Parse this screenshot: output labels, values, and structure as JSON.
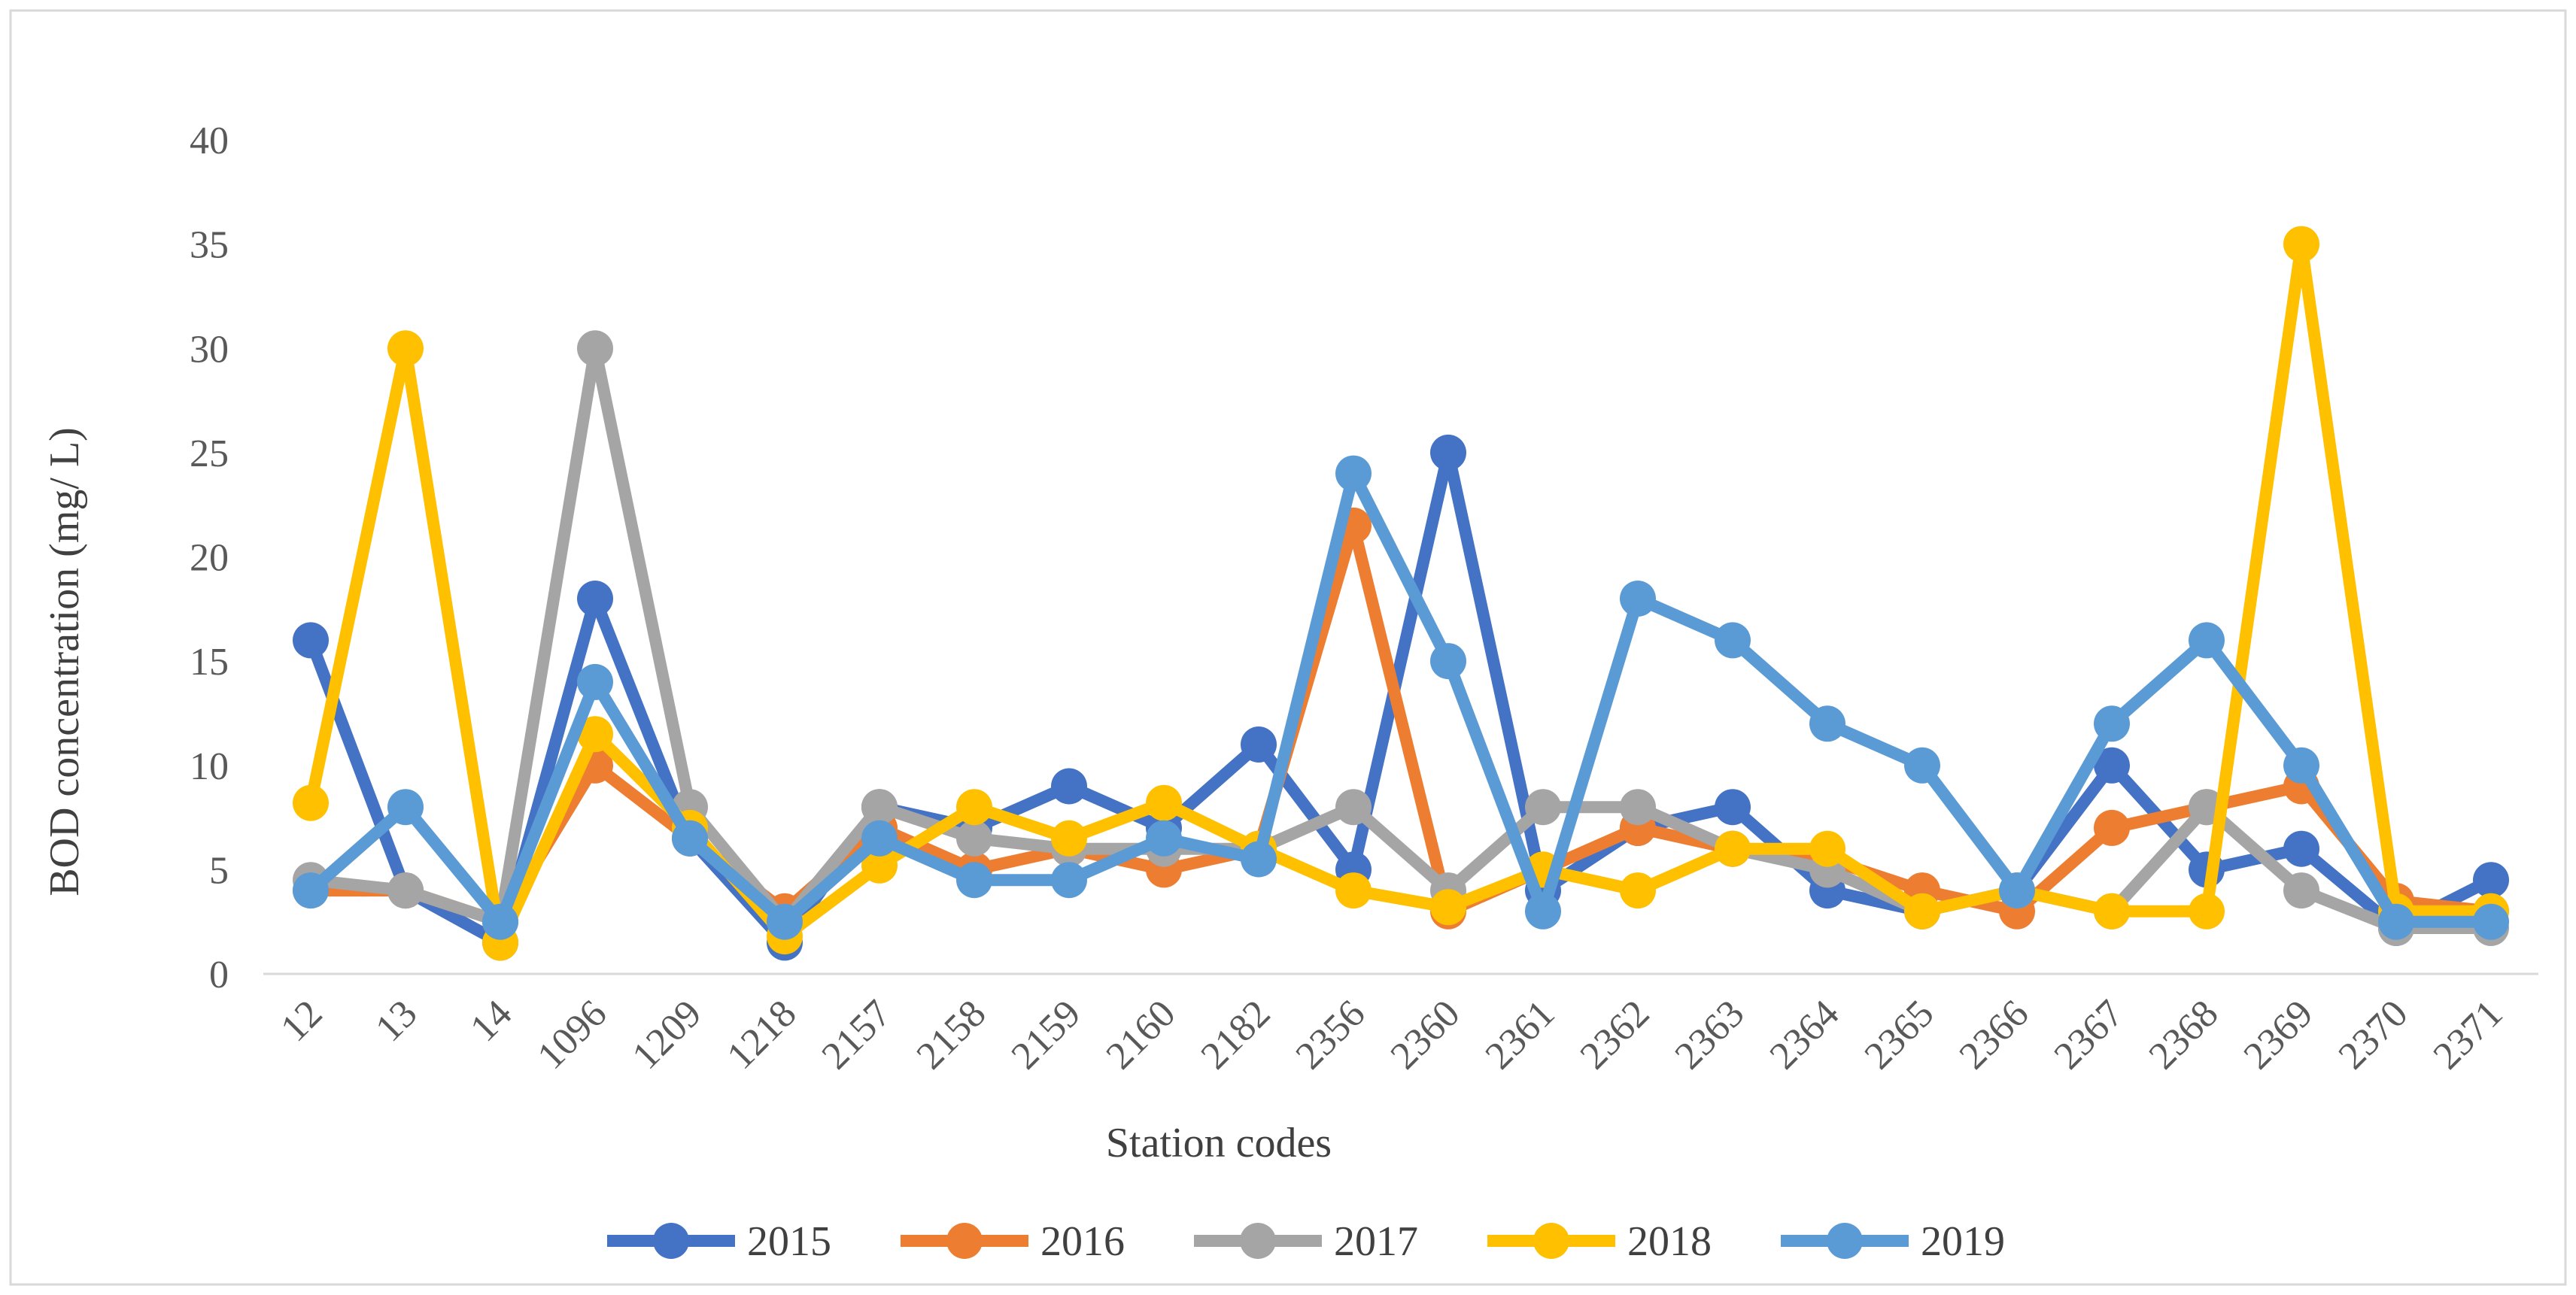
{
  "chart_data": {
    "type": "line",
    "xlabel": "Station codes",
    "ylabel": "BOD concentration (mg/ L)",
    "ylim": [
      0,
      40
    ],
    "yticks": [
      0,
      5,
      10,
      15,
      20,
      25,
      30,
      35,
      40
    ],
    "grid": false,
    "legend_position": "bottom",
    "categories": [
      "12",
      "13",
      "14",
      "1096",
      "1209",
      "1218",
      "2157",
      "2158",
      "2159",
      "2160",
      "2182",
      "2356",
      "2360",
      "2361",
      "2362",
      "2363",
      "2364",
      "2365",
      "2366",
      "2367",
      "2368",
      "2369",
      "2370",
      "2371"
    ],
    "series": [
      {
        "name": "2015",
        "color": "#4472C4",
        "values": [
          16,
          4,
          1.5,
          18,
          6.5,
          1.5,
          8,
          7,
          9,
          7,
          11,
          5,
          25,
          4,
          7,
          8,
          4,
          3,
          4,
          10,
          5,
          6,
          2.2,
          4.5
        ]
      },
      {
        "name": "2016",
        "color": "#ED7D31",
        "values": [
          4,
          4,
          2.5,
          10,
          6.5,
          3,
          7,
          5,
          6,
          5,
          6,
          21.5,
          3,
          5,
          7,
          6,
          5.5,
          4,
          3,
          7,
          8,
          9,
          3.5,
          3
        ]
      },
      {
        "name": "2017",
        "color": "#A5A5A5",
        "values": [
          4.5,
          4,
          2.5,
          30,
          8,
          2.5,
          8,
          6.5,
          6,
          6,
          6,
          8,
          4,
          8,
          8,
          6,
          5,
          3,
          4,
          3,
          8,
          4,
          2.2,
          2.2
        ]
      },
      {
        "name": "2018",
        "color": "#FFC000",
        "values": [
          8.2,
          30,
          1.5,
          11.5,
          7,
          1.8,
          5.2,
          8,
          6.5,
          8.2,
          6,
          4,
          3.2,
          5,
          4,
          6,
          6,
          3,
          4,
          3,
          3,
          35,
          3,
          3
        ]
      },
      {
        "name": "2019",
        "color": "#5B9BD5",
        "values": [
          4,
          8,
          2.5,
          14,
          6.5,
          2.5,
          6.5,
          4.5,
          4.5,
          6.5,
          5.5,
          24,
          15,
          3,
          18,
          16,
          12,
          10,
          4,
          12,
          16,
          10,
          2.5,
          2.5
        ]
      }
    ]
  }
}
